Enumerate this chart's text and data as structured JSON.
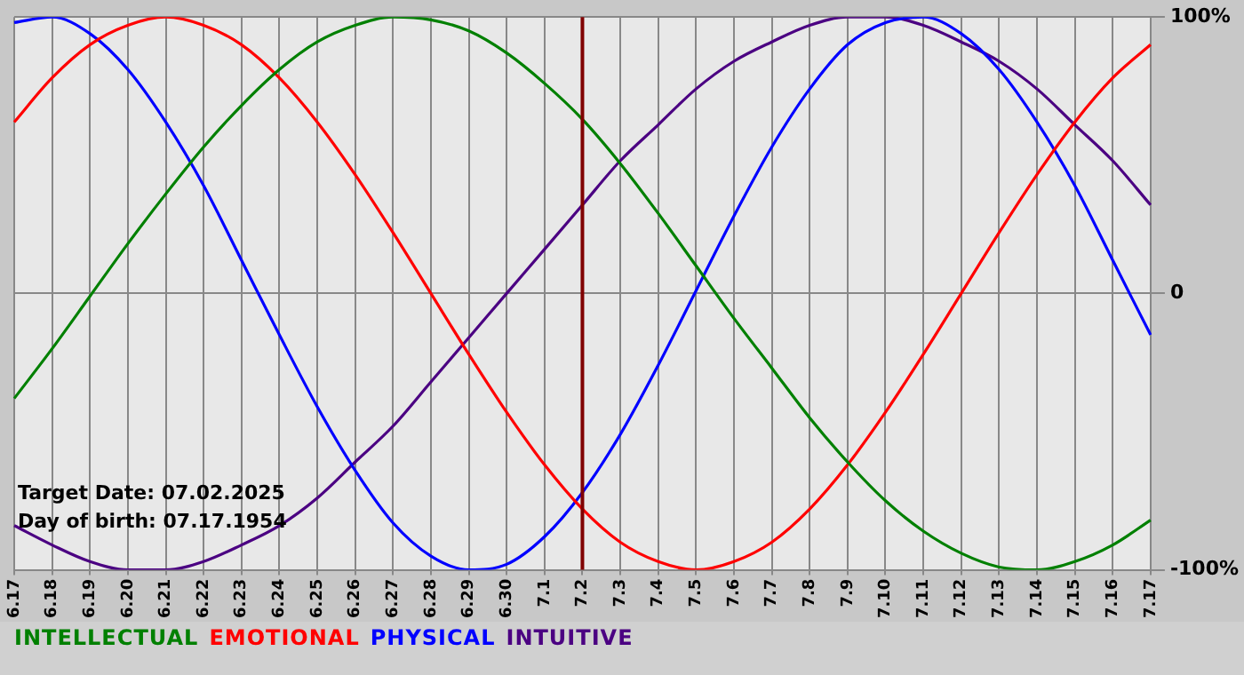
{
  "chart_data": {
    "type": "line",
    "categories": [
      "6.17",
      "6.18",
      "6.19",
      "6.20",
      "6.21",
      "6.22",
      "6.23",
      "6.24",
      "6.25",
      "6.26",
      "6.27",
      "6.28",
      "6.29",
      "6.30",
      "7.1",
      "7.2",
      "7.3",
      "7.4",
      "7.5",
      "7.6",
      "7.7",
      "7.8",
      "7.9",
      "7.10",
      "7.11",
      "7.12",
      "7.13",
      "7.14",
      "7.15",
      "7.16",
      "7.17"
    ],
    "series": [
      {
        "name": "INTELLECTUAL",
        "color": "#008000",
        "values": [
          -38,
          -20,
          -1,
          18,
          36,
          53,
          68,
          81,
          91,
          97,
          100,
          99,
          95,
          87,
          76,
          63,
          47,
          29,
          10,
          -9,
          -27,
          -45,
          -61,
          -75,
          -86,
          -94,
          -99,
          -100,
          -97,
          -91,
          -82
        ]
      },
      {
        "name": "EMOTIONAL",
        "color": "#ff0000",
        "values": [
          62,
          78,
          90,
          97,
          100,
          97,
          90,
          78,
          62,
          43,
          22,
          0,
          -22,
          -43,
          -62,
          -78,
          -90,
          -97,
          -100,
          -97,
          -90,
          -78,
          -62,
          -43,
          -22,
          0,
          22,
          43,
          62,
          78,
          90
        ]
      },
      {
        "name": "PHYSICAL",
        "color": "#0000ff",
        "values": [
          98,
          100,
          94,
          81,
          62,
          39,
          12,
          -15,
          -41,
          -64,
          -83,
          -95,
          -100,
          -98,
          -88,
          -72,
          -51,
          -26,
          1,
          28,
          53,
          74,
          90,
          98,
          100,
          94,
          81,
          62,
          39,
          12,
          -15
        ]
      },
      {
        "name": "INTUITIVE",
        "color": "#4b0082",
        "values": [
          -84,
          -91,
          -97,
          -100,
          -100,
          -97,
          -91,
          -84,
          -74,
          -61,
          -48,
          -32,
          -16,
          0,
          16,
          32,
          48,
          61,
          74,
          84,
          91,
          97,
          100,
          100,
          97,
          91,
          84,
          74,
          61,
          48,
          32
        ]
      }
    ],
    "ylim": [
      -100,
      100
    ],
    "yticks": [
      {
        "value": -100,
        "label": "-100%"
      },
      0,
      {
        "value": 100,
        "label": "100%"
      }
    ],
    "ref_lines": [
      {
        "axis": "x",
        "value": "7.2",
        "color": "#800000"
      }
    ],
    "annotations": [
      "Target Date: 07.02.2025",
      "Day of birth: 07.17.1954"
    ],
    "grid": true,
    "legend": "bottom",
    "marker": "none",
    "line_style": "solid"
  }
}
